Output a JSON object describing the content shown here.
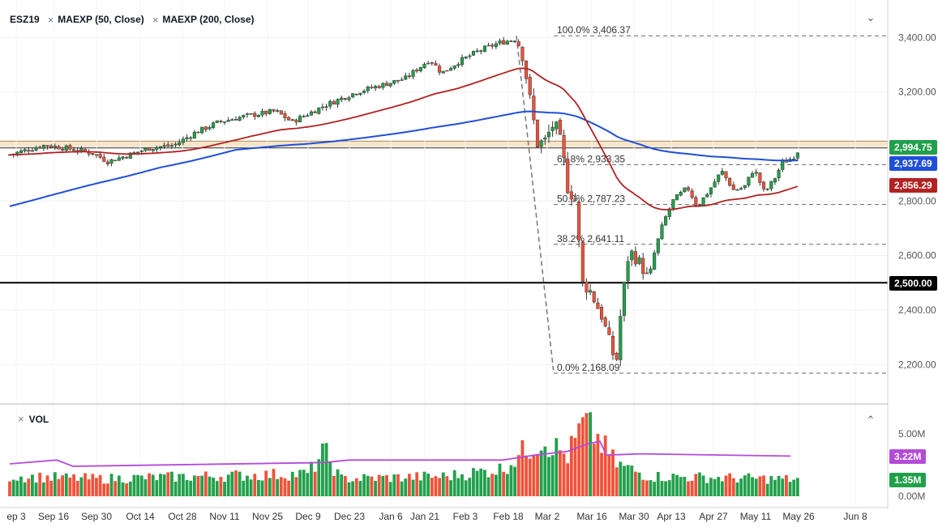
{
  "legend": {
    "symbol": "ESZ19",
    "ma1": "MAEXP (50, Close)",
    "ma2": "MAEXP (200, Close)",
    "vol": "VOL"
  },
  "price_tags": {
    "last": "2,994.75",
    "ma200": "2,937.69",
    "ma50": "2,856.29",
    "level": "2,500.00",
    "vol_ma": "3.22M",
    "vol_last": "1.35M"
  },
  "colors": {
    "up": "#21a04b",
    "down": "#f0523a",
    "ma50": "#b22222",
    "ma200": "#1f4fd8",
    "vol_ma": "#b44bd8",
    "zone": "#f7e5c8",
    "last_tag": "#21a04b",
    "ma200_tag": "#1f4fd8",
    "ma50_tag": "#b22222"
  },
  "chart_data": {
    "type": "candlestick",
    "y_axis_labels": [
      "3,400.00",
      "3,200.00",
      "3,000.00",
      "2,800.00",
      "2,600.00",
      "2,400.00",
      "2,200.00"
    ],
    "y_axis_values": [
      3400,
      3200,
      3000,
      2800,
      2600,
      2400,
      2200
    ],
    "vol_axis_labels": [
      "5.00M",
      "0.00M"
    ],
    "x_axis_labels": [
      "ep 3",
      "Sep 16",
      "Sep 30",
      "Oct 14",
      "Oct 28",
      "Nov 11",
      "Nov 25",
      "Dec 9",
      "Dec 23",
      "Jan 6",
      "Jan 21",
      "Feb 3",
      "Feb 18",
      "Mar 2",
      "Mar 16",
      "Mar 30",
      "Apr 13",
      "Apr 27",
      "May 11",
      "May 26",
      "Jun 8"
    ],
    "fib_levels": [
      {
        "label": "100.0% 3,406.37",
        "value": 3406.37
      },
      {
        "label": "61.8% 2,933.35",
        "value": 2933.35
      },
      {
        "label": "50.0% 2,787.23",
        "value": 2787.23
      },
      {
        "label": "38.2% 2,641.11",
        "value": 2641.11
      },
      {
        "label": "0.0% 2,168.09",
        "value": 2168.09
      }
    ],
    "horizontal_line": 2500,
    "resistance_zone": [
      2994.75,
      3020
    ],
    "last_price": 2994.75,
    "ma50_last": 2856.29,
    "ma200_last": 2937.69,
    "vol_ma_last": 3.22,
    "vol_last": 1.35,
    "y_range": [
      2150,
      3450
    ],
    "grid": true
  }
}
